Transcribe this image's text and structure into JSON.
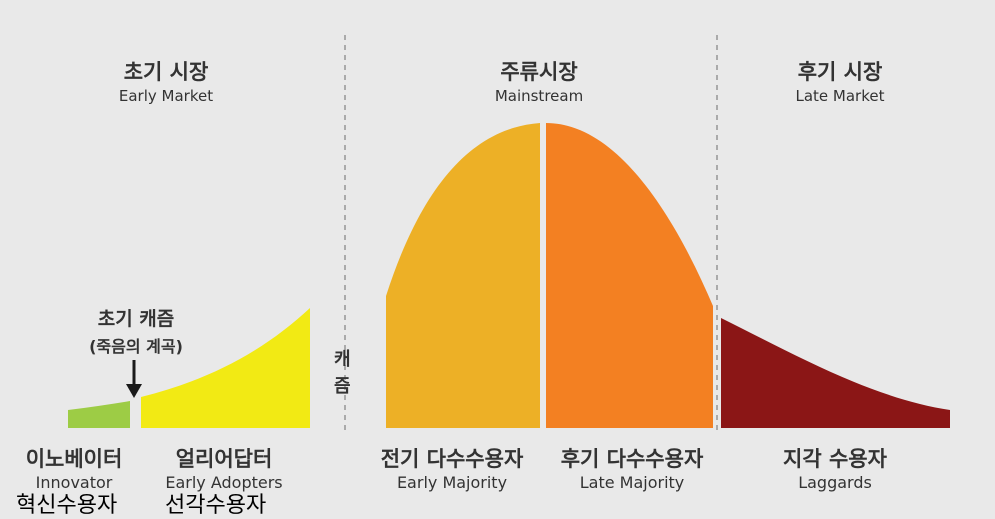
{
  "markets": [
    {
      "ko": "초기 시장",
      "en": "Early Market"
    },
    {
      "ko": "주류시장",
      "en": "Mainstream"
    },
    {
      "ko": "후기 시장",
      "en": "Late Market"
    }
  ],
  "segments": [
    {
      "ko": "이노베이터",
      "en": "Innovator",
      "color": "#9dcc45"
    },
    {
      "ko": "얼리어답터",
      "en": "Early Adopters",
      "color": "#f2ea14"
    },
    {
      "ko": "전기 다수수용자",
      "en": "Early Majority",
      "color": "#edb026"
    },
    {
      "ko": "후기 다수수용자",
      "en": "Late Majority",
      "color": "#f38022"
    },
    {
      "ko": "지각 수용자",
      "en": "Laggards",
      "color": "#8b1616"
    }
  ],
  "chasm": {
    "title": "초기 캐즘",
    "subtitle": "(죽음의 계곡)",
    "vertical_top": "캐",
    "vertical_bottom": "즘"
  },
  "bottom_labels": [
    "혁신수용자",
    "선각수용자"
  ]
}
